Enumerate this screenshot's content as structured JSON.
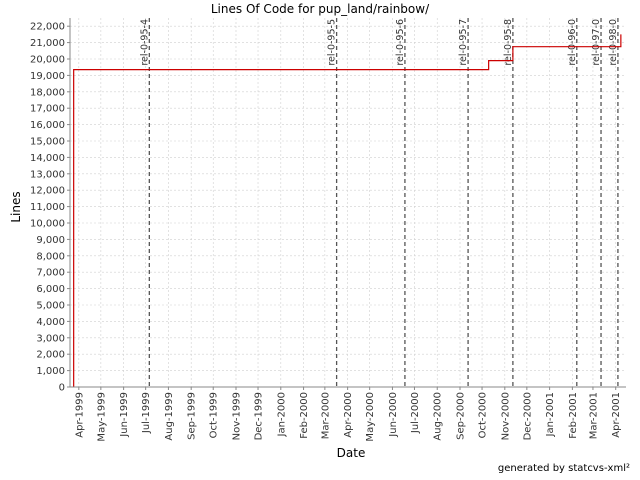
{
  "chart_data": {
    "type": "line",
    "title": "Lines Of Code for pup_land/rainbow/",
    "xlabel": "Date",
    "ylabel": "Lines",
    "ylim": [
      0,
      22500
    ],
    "xlim": [
      "1999-03-20",
      "2001-04-15"
    ],
    "yticks": [
      0,
      1000,
      2000,
      3000,
      4000,
      5000,
      6000,
      7000,
      8000,
      9000,
      10000,
      11000,
      12000,
      13000,
      14000,
      15000,
      16000,
      17000,
      18000,
      19000,
      20000,
      21000,
      22000
    ],
    "ytick_labels": [
      "0",
      "1,000",
      "2,000",
      "3,000",
      "4,000",
      "5,000",
      "6,000",
      "7,000",
      "8,000",
      "9,000",
      "10,000",
      "11,000",
      "12,000",
      "13,000",
      "14,000",
      "15,000",
      "16,000",
      "17,000",
      "18,000",
      "19,000",
      "20,000",
      "21,000",
      "22,000"
    ],
    "xticks": [
      {
        "date": "1999-04-01",
        "label": "Apr-1999"
      },
      {
        "date": "1999-05-01",
        "label": "May-1999"
      },
      {
        "date": "1999-06-01",
        "label": "Jun-1999"
      },
      {
        "date": "1999-07-01",
        "label": "Jul-1999"
      },
      {
        "date": "1999-08-01",
        "label": "Aug-1999"
      },
      {
        "date": "1999-09-01",
        "label": "Sep-1999"
      },
      {
        "date": "1999-10-01",
        "label": "Oct-1999"
      },
      {
        "date": "1999-11-01",
        "label": "Nov-1999"
      },
      {
        "date": "1999-12-01",
        "label": "Dec-1999"
      },
      {
        "date": "2000-01-01",
        "label": "Jan-2000"
      },
      {
        "date": "2000-02-01",
        "label": "Feb-2000"
      },
      {
        "date": "2000-03-01",
        "label": "Mar-2000"
      },
      {
        "date": "2000-04-01",
        "label": "Apr-2000"
      },
      {
        "date": "2000-05-01",
        "label": "May-2000"
      },
      {
        "date": "2000-06-01",
        "label": "Jun-2000"
      },
      {
        "date": "2000-07-01",
        "label": "Jul-2000"
      },
      {
        "date": "2000-08-01",
        "label": "Aug-2000"
      },
      {
        "date": "2000-09-01",
        "label": "Sep-2000"
      },
      {
        "date": "2000-10-01",
        "label": "Oct-2000"
      },
      {
        "date": "2000-11-01",
        "label": "Nov-2000"
      },
      {
        "date": "2000-12-01",
        "label": "Dec-2000"
      },
      {
        "date": "2001-01-01",
        "label": "Jan-2001"
      },
      {
        "date": "2001-02-01",
        "label": "Feb-2001"
      },
      {
        "date": "2001-03-01",
        "label": "Mar-2001"
      },
      {
        "date": "2001-04-01",
        "label": "Apr-2001"
      }
    ],
    "series": [
      {
        "color": "#cc0000",
        "step": true,
        "points": [
          {
            "x": "1999-03-25",
            "y": 0
          },
          {
            "x": "1999-03-25",
            "y": 19350
          },
          {
            "x": "2000-10-10",
            "y": 19350
          },
          {
            "x": "2000-10-10",
            "y": 19900
          },
          {
            "x": "2000-11-12",
            "y": 19900
          },
          {
            "x": "2000-11-12",
            "y": 20750
          },
          {
            "x": "2001-04-08",
            "y": 20750
          },
          {
            "x": "2001-04-08",
            "y": 21500
          }
        ]
      }
    ],
    "markers": [
      {
        "date": "1999-07-06",
        "label": "rel-0-95-4"
      },
      {
        "date": "2000-03-17",
        "label": "rel-0-95-5"
      },
      {
        "date": "2000-06-18",
        "label": "rel-0-95-6"
      },
      {
        "date": "2000-09-12",
        "label": "rel-0-95-7"
      },
      {
        "date": "2000-11-12",
        "label": "rel-0-95-8"
      },
      {
        "date": "2001-02-07",
        "label": "rel-0-96-0"
      },
      {
        "date": "2001-03-12",
        "label": "rel-0-97-0"
      },
      {
        "date": "2001-04-04",
        "label": "rel-0-98-0"
      }
    ],
    "grid": true,
    "colors": {
      "line": "#cc0000",
      "marker": "#555555",
      "grid": "#d0d0d0"
    }
  },
  "footer": "generated by statcvs-xml²"
}
